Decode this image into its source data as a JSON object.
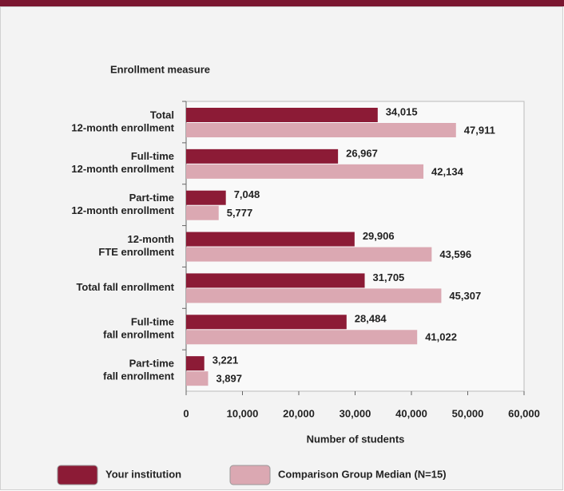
{
  "chart_data": {
    "type": "bar",
    "orientation": "horizontal",
    "title": "Enrollment measure",
    "xlabel": "Number of students",
    "categories": [
      [
        "Total",
        "12-month enrollment"
      ],
      [
        "Full-time",
        "12-month enrollment"
      ],
      [
        "Part-time",
        "12-month enrollment"
      ],
      [
        "12-month",
        "FTE enrollment"
      ],
      [
        "Total fall enrollment"
      ],
      [
        "Full-time",
        "fall enrollment"
      ],
      [
        "Part-time",
        "fall enrollment"
      ]
    ],
    "series": [
      {
        "name": "Your institution",
        "color": "#8c1b36",
        "values": [
          34015,
          26967,
          7048,
          29906,
          31705,
          28484,
          3221
        ],
        "value_labels": [
          "34,015",
          "26,967",
          "7,048",
          "29,906",
          "31,705",
          "28,484",
          "3,221"
        ]
      },
      {
        "name": "Comparison Group Median (N=15)",
        "color": "#dba8b2",
        "values": [
          47911,
          42134,
          5777,
          43596,
          45307,
          41022,
          3897
        ],
        "value_labels": [
          "47,911",
          "42,134",
          "5,777",
          "43,596",
          "45,307",
          "41,022",
          "3,897"
        ]
      }
    ],
    "xlim": [
      0,
      60000
    ],
    "xticks": [
      0,
      {
        "value": 10000,
        "label": "10,000"
      },
      {
        "value": 20000,
        "label": "20,000"
      },
      {
        "value": 30000,
        "label": "30,000"
      },
      {
        "value": 40000,
        "label": "40,000"
      },
      {
        "value": 50000,
        "label": "50,000"
      },
      {
        "value": 60000,
        "label": "60,000"
      }
    ]
  }
}
